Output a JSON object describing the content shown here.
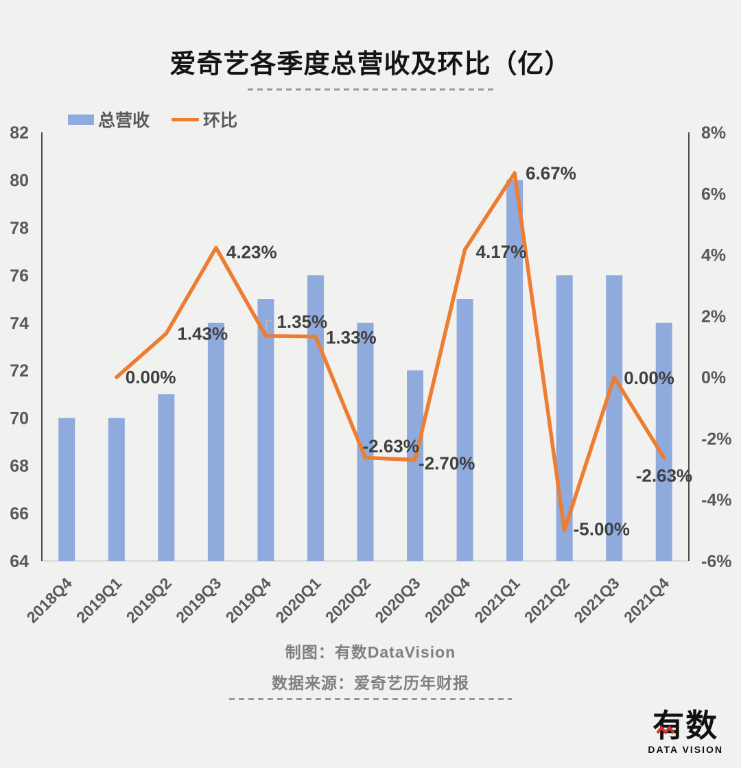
{
  "title": "爱奇艺各季度总营收及环比（亿）",
  "legend": {
    "bar_label": "总营收",
    "line_label": "环比"
  },
  "footer": {
    "credit": "制图：有数DataVision",
    "source": "数据来源：爱奇艺历年财报"
  },
  "logo": {
    "text": "有数",
    "subtext": "DATA VISION"
  },
  "colors": {
    "background": "#F1F1F0",
    "bar": "#8FAADC",
    "line": "#ED7D31",
    "title_text": "#141414",
    "axis_text": "#595959",
    "data_label": "#3F3F3F",
    "footer_text": "#808080",
    "axis_line": "#262626",
    "baseline": "#CFCFCD",
    "dash": "#999999",
    "leader": "#BFBFBF",
    "logo_red": "#D0342C",
    "logo_black": "#111111"
  },
  "chart_data": {
    "type": "bar",
    "title": "爱奇艺各季度总营收及环比（亿）",
    "categories": [
      "2018Q4",
      "2019Q1",
      "2019Q2",
      "2019Q3",
      "2019Q4",
      "2020Q1",
      "2020Q2",
      "2020Q3",
      "2020Q4",
      "2021Q1",
      "2021Q2",
      "2021Q3",
      "2021Q4"
    ],
    "series": [
      {
        "name": "总营收",
        "type": "bar",
        "axis": "left",
        "values": [
          70,
          70,
          71,
          74,
          75,
          76,
          74,
          72,
          75,
          80,
          76,
          76,
          74
        ]
      },
      {
        "name": "环比",
        "type": "line",
        "axis": "right",
        "values": [
          null,
          0.0,
          1.43,
          4.23,
          1.35,
          1.33,
          -2.63,
          -2.7,
          4.17,
          6.67,
          -5.0,
          0.0,
          -2.63
        ],
        "point_labels": [
          "",
          "0.00%",
          "1.43%",
          "4.23%",
          "1.35%",
          "1.33%",
          "-2.63%",
          "-2.70%",
          "4.17%",
          "6.67%",
          "-5.00%",
          "0.00%",
          "-2.63%"
        ]
      }
    ],
    "left_axis": {
      "min": 64,
      "max": 82,
      "step": 2,
      "tick_labels": [
        "82",
        "80",
        "78",
        "76",
        "74",
        "72",
        "70",
        "68",
        "66",
        "64"
      ]
    },
    "right_axis": {
      "min": -6,
      "max": 8,
      "step": 2,
      "tick_labels": [
        "8%",
        "6%",
        "4%",
        "2%",
        "0%",
        "-2%",
        "-4%",
        "-6%"
      ]
    },
    "grid": false,
    "legend_position": "top-left"
  }
}
